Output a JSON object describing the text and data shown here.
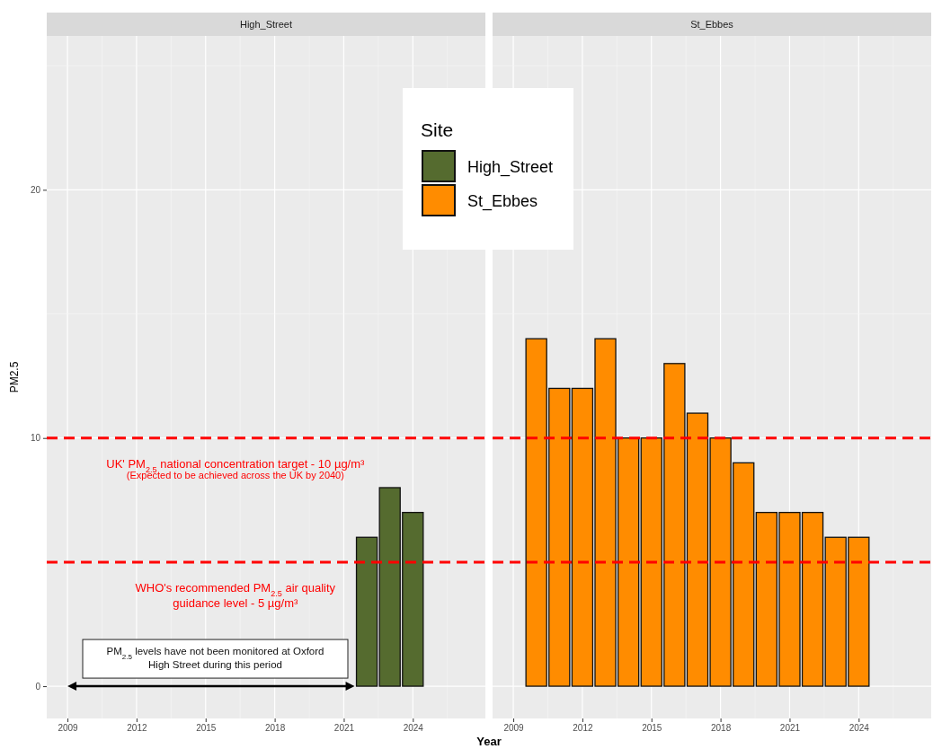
{
  "chart_data": [
    {
      "type": "bar",
      "title": "High_Street",
      "ylabel": "PM2.5",
      "xlabel": "Year",
      "legend_title": "Site",
      "legend": "top right",
      "grid": true,
      "x": [
        2022,
        2023,
        2024
      ],
      "series": [
        {
          "name": "High_Street",
          "color": "#556b2f",
          "values": [
            6,
            8,
            7
          ]
        }
      ],
      "xlim": [
        2008.1,
        2027.15
      ],
      "xticks": [
        2009,
        2012,
        2015,
        2018,
        2021,
        2024
      ],
      "ylim": [
        -1.3,
        26.2
      ],
      "yticks": [
        0,
        10,
        20
      ],
      "ref_lines": [
        {
          "axis": "y",
          "value": 10,
          "label": "UK' PM$_{2.5}$ national concentration target - 10 µg/m³",
          "color": "#ff0000",
          "line_style": "dashed"
        },
        {
          "axis": "y",
          "value": 5,
          "label": "WHO's recommended PM$_{2.5}$ air quality guidance level - 5 µg/m³",
          "color": "#ff0000",
          "line_style": "dashed"
        }
      ],
      "annotations": [
        "(Expected to be achieved across the UK by 2040)",
        "PM$_{2.5}$ levels have not been monitored at Oxford High Street during this period"
      ]
    },
    {
      "type": "bar",
      "title": "St_Ebbes",
      "grid": true,
      "tick_labels": "x",
      "x": [
        2010,
        2011,
        2012,
        2013,
        2014,
        2015,
        2016,
        2017,
        2018,
        2019,
        2020,
        2021,
        2022,
        2023,
        2024
      ],
      "series": [
        {
          "name": "St_Ebbes",
          "color": "#ff8c00",
          "values": [
            14,
            12,
            12,
            14,
            10,
            10,
            13,
            11,
            10,
            9,
            7,
            7,
            7,
            6,
            6
          ]
        }
      ],
      "xlim": [
        2008.1,
        2027.15
      ],
      "xticks": [
        2009,
        2012,
        2015,
        2018,
        2021,
        2024
      ],
      "ylim": [
        -1.3,
        26.2
      ],
      "yticks": [
        0,
        10,
        20
      ],
      "ref_lines": [
        {
          "axis": "y",
          "value": 10,
          "color": "#ff0000",
          "line_style": "dashed"
        },
        {
          "axis": "y",
          "value": 5,
          "color": "#ff0000",
          "line_style": "dashed"
        }
      ]
    }
  ]
}
